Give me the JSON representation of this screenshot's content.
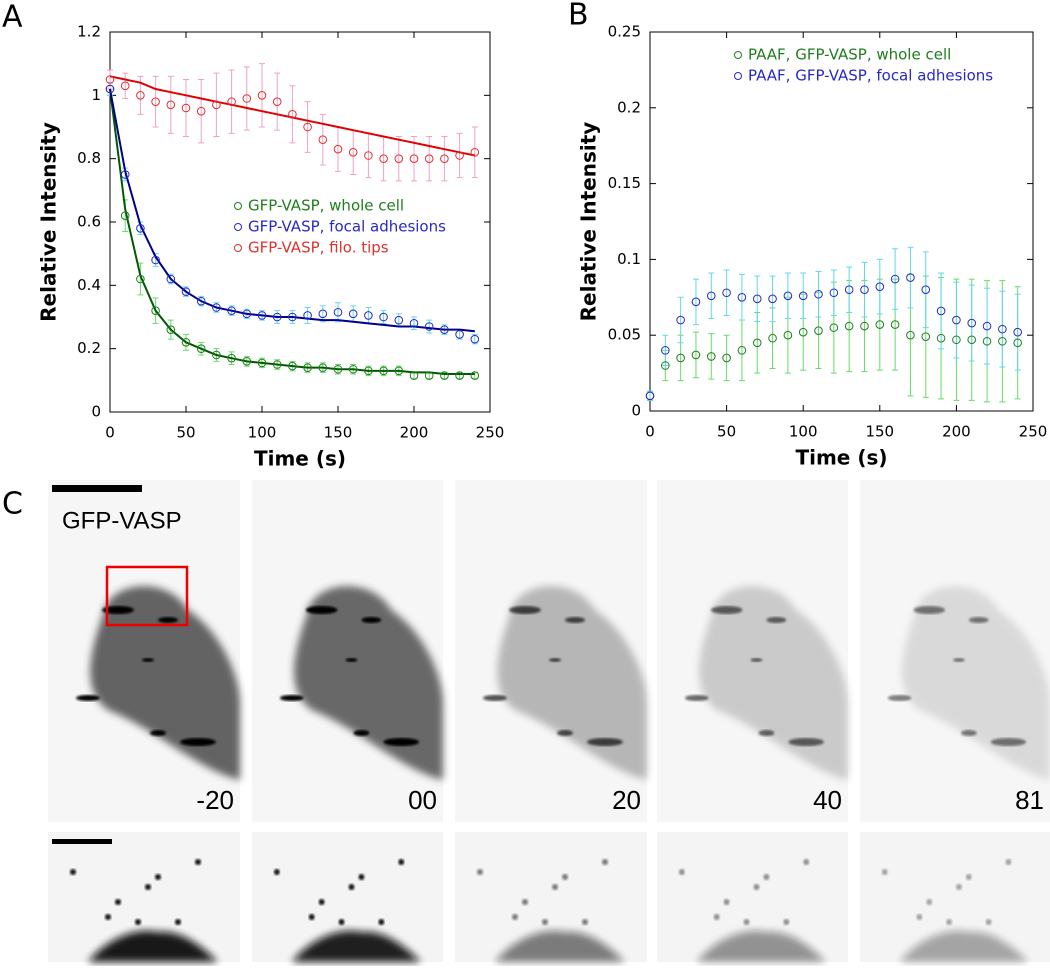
{
  "panel_labels": [
    "A",
    "B",
    "C"
  ],
  "images": {
    "label": "GFP-VASP",
    "times": [
      "-20",
      "00",
      "20",
      "40",
      "81"
    ]
  },
  "chart_data": [
    {
      "type": "scatter",
      "xlabel": "Time (s)",
      "ylabel": "Relative Intensity",
      "xlim": [
        0,
        250
      ],
      "ylim": [
        0,
        1.2
      ],
      "xticks": [
        0,
        50,
        100,
        150,
        200,
        250
      ],
      "yticks": [
        0,
        0.2,
        0.4,
        0.6,
        0.8,
        1,
        1.2
      ],
      "legend": "right",
      "x": [
        0,
        10,
        20,
        30,
        40,
        50,
        60,
        70,
        80,
        90,
        100,
        110,
        120,
        130,
        140,
        150,
        160,
        170,
        180,
        190,
        200,
        210,
        220,
        230,
        240
      ],
      "series": [
        {
          "name": "GFP-VASP, whole cell",
          "color": "#1e7d1e",
          "error_color": "#66dd66",
          "values": [
            1.02,
            0.62,
            0.42,
            0.32,
            0.26,
            0.22,
            0.2,
            0.18,
            0.17,
            0.16,
            0.155,
            0.15,
            0.145,
            0.14,
            0.14,
            0.135,
            0.135,
            0.13,
            0.13,
            0.13,
            0.115,
            0.115,
            0.115,
            0.115,
            0.115
          ],
          "errors": [
            0.02,
            0.05,
            0.05,
            0.04,
            0.03,
            0.025,
            0.02,
            0.02,
            0.02,
            0.015,
            0.015,
            0.015,
            0.015,
            0.015,
            0.015,
            0.015,
            0.015,
            0.015,
            0.015,
            0.015,
            0.01,
            0.01,
            0.01,
            0.01,
            0.01
          ]
        },
        {
          "name": "GFP-VASP, focal adhesions",
          "color": "#2828c8",
          "error_color": "#60d8f0",
          "values": [
            1.02,
            0.75,
            0.58,
            0.48,
            0.42,
            0.38,
            0.35,
            0.33,
            0.32,
            0.31,
            0.305,
            0.3,
            0.3,
            0.305,
            0.31,
            0.315,
            0.31,
            0.305,
            0.3,
            0.29,
            0.28,
            0.27,
            0.26,
            0.245,
            0.23
          ],
          "errors": [
            0.02,
            0.02,
            0.02,
            0.02,
            0.015,
            0.015,
            0.015,
            0.015,
            0.015,
            0.015,
            0.015,
            0.02,
            0.02,
            0.025,
            0.025,
            0.03,
            0.025,
            0.025,
            0.02,
            0.02,
            0.02,
            0.02,
            0.015,
            0.015,
            0.015
          ]
        },
        {
          "name": "GFP-VASP, filo. tips",
          "color": "#e03030",
          "error_color": "#f0a0c8",
          "values": [
            1.05,
            1.03,
            1,
            0.98,
            0.97,
            0.96,
            0.95,
            0.97,
            0.98,
            0.99,
            1,
            0.98,
            0.94,
            0.9,
            0.86,
            0.83,
            0.82,
            0.81,
            0.8,
            0.8,
            0.8,
            0.8,
            0.8,
            0.81,
            0.82
          ],
          "errors": [
            0.03,
            0.04,
            0.06,
            0.08,
            0.09,
            0.09,
            0.1,
            0.1,
            0.1,
            0.1,
            0.1,
            0.09,
            0.09,
            0.08,
            0.08,
            0.07,
            0.07,
            0.07,
            0.07,
            0.07,
            0.07,
            0.07,
            0.07,
            0.07,
            0.08
          ]
        }
      ],
      "fits": [
        {
          "color": "#005a00",
          "values": [
            1.02,
            0.64,
            0.43,
            0.32,
            0.26,
            0.22,
            0.2,
            0.18,
            0.17,
            0.16,
            0.155,
            0.15,
            0.145,
            0.14,
            0.14,
            0.135,
            0.135,
            0.13,
            0.13,
            0.13,
            0.125,
            0.125,
            0.12,
            0.12,
            0.12
          ]
        },
        {
          "color": "#00008b",
          "values": [
            1.02,
            0.76,
            0.59,
            0.49,
            0.42,
            0.38,
            0.35,
            0.33,
            0.32,
            0.31,
            0.305,
            0.3,
            0.3,
            0.295,
            0.29,
            0.29,
            0.285,
            0.28,
            0.275,
            0.27,
            0.27,
            0.265,
            0.26,
            0.26,
            0.255
          ]
        },
        {
          "color": "#e00000",
          "values": [
            1.06,
            1.05,
            1.04,
            1.02,
            1.01,
            1,
            0.99,
            0.98,
            0.97,
            0.96,
            0.95,
            0.94,
            0.93,
            0.92,
            0.91,
            0.9,
            0.89,
            0.88,
            0.87,
            0.86,
            0.85,
            0.84,
            0.83,
            0.82,
            0.81
          ]
        }
      ]
    },
    {
      "type": "scatter",
      "xlabel": "Time (s)",
      "ylabel": "Relative Intensity",
      "xlim": [
        0,
        250
      ],
      "ylim": [
        0,
        0.25
      ],
      "xticks": [
        0,
        50,
        100,
        150,
        200,
        250
      ],
      "yticks": [
        0,
        0.05,
        0.1,
        0.15,
        0.2,
        0.25
      ],
      "legend": "top",
      "x": [
        0,
        10,
        20,
        30,
        40,
        50,
        60,
        70,
        80,
        90,
        100,
        110,
        120,
        130,
        140,
        150,
        160,
        170,
        180,
        190,
        200,
        210,
        220,
        230,
        240
      ],
      "series": [
        {
          "name": "PAAF, GFP-VASP, whole cell",
          "color": "#1e7d1e",
          "error_color": "#66dd66",
          "values": [
            0.01,
            0.03,
            0.035,
            0.037,
            0.036,
            0.035,
            0.04,
            0.045,
            0.048,
            0.05,
            0.052,
            0.053,
            0.055,
            0.056,
            0.056,
            0.057,
            0.057,
            0.05,
            0.049,
            0.048,
            0.047,
            0.047,
            0.046,
            0.046,
            0.045
          ],
          "errors": [
            0.003,
            0.01,
            0.015,
            0.015,
            0.015,
            0.015,
            0.02,
            0.02,
            0.02,
            0.025,
            0.025,
            0.025,
            0.03,
            0.03,
            0.03,
            0.03,
            0.03,
            0.04,
            0.04,
            0.04,
            0.04,
            0.04,
            0.04,
            0.04,
            0.037
          ]
        },
        {
          "name": "PAAF, GFP-VASP, focal adhesions",
          "color": "#2828c8",
          "error_color": "#60d8f0",
          "values": [
            0.01,
            0.04,
            0.06,
            0.072,
            0.076,
            0.078,
            0.075,
            0.074,
            0.074,
            0.076,
            0.076,
            0.077,
            0.078,
            0.08,
            0.08,
            0.082,
            0.087,
            0.088,
            0.08,
            0.066,
            0.06,
            0.058,
            0.056,
            0.054,
            0.052
          ],
          "errors": [
            0.003,
            0.01,
            0.015,
            0.015,
            0.015,
            0.015,
            0.015,
            0.015,
            0.015,
            0.015,
            0.015,
            0.015,
            0.015,
            0.015,
            0.018,
            0.018,
            0.02,
            0.02,
            0.025,
            0.025,
            0.025,
            0.025,
            0.025,
            0.025,
            0.025
          ]
        }
      ]
    }
  ]
}
